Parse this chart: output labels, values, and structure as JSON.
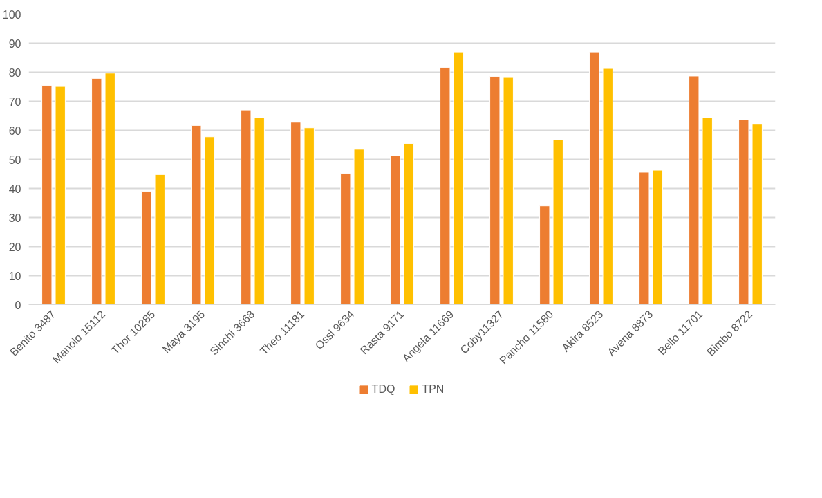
{
  "chart_data": {
    "type": "bar",
    "categories": [
      "Benito 3487",
      "Manolo 15112",
      "Thor 10285",
      "Maya 3195",
      "Sinchi 3668",
      "Theo 11181",
      "Ossi 9634",
      "Rasta 9171",
      "Angela 11669",
      "Coby11327",
      "Pancho 11580",
      "Akira 8523",
      "Avena 8873",
      "Bello 11701",
      "Bimbo 8722"
    ],
    "series": [
      {
        "name": "TDQ",
        "color": "#ed7d31",
        "values": [
          75.5,
          77.9,
          39.0,
          61.7,
          67.0,
          62.8,
          45.2,
          51.3,
          81.6,
          78.6,
          34.0,
          87.0,
          45.6,
          78.7,
          63.6
        ]
      },
      {
        "name": "TPN",
        "color": "#ffc000",
        "values": [
          75.1,
          79.7,
          44.8,
          57.8,
          64.3,
          60.9,
          53.5,
          55.5,
          87.0,
          78.2,
          56.7,
          81.3,
          46.3,
          64.4,
          62.1
        ]
      }
    ],
    "ylim": [
      0,
      100
    ],
    "yticks": [
      0,
      10,
      20,
      30,
      40,
      50,
      60,
      70,
      80,
      90,
      100
    ],
    "grid": "y",
    "legend": "bottom"
  }
}
